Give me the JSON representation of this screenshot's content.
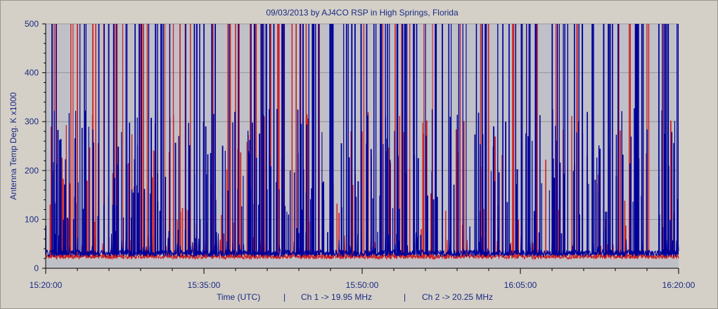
{
  "chart_data": {
    "type": "line",
    "title": "09/03/2013  by  AJ4CO RSP  in  High Springs, Florida",
    "ylabel": "Antenna Temp Deg. K x1000",
    "xlabel": "Time (UTC)",
    "footer_separator": "|",
    "ylim": [
      0,
      500
    ],
    "yticks": [
      0,
      100,
      200,
      300,
      400,
      500
    ],
    "xlim_minutes": [
      0,
      60
    ],
    "xticks": [
      {
        "label": "15:20:00",
        "minute": 0
      },
      {
        "label": "15:35:00",
        "minute": 15
      },
      {
        "label": "15:50:00",
        "minute": 30
      },
      {
        "label": "16:05:00",
        "minute": 45
      },
      {
        "label": "16:20:00",
        "minute": 60
      }
    ],
    "grid": true,
    "series": [
      {
        "name": "Ch 1 -> 19.95 MHz",
        "color": "#cc2222",
        "baseline": 22,
        "noise": 10,
        "spikes_to_max": 65,
        "spikes_mid": 120
      },
      {
        "name": "Ch 2 -> 20.25 MHz",
        "color": "#000099",
        "baseline": 28,
        "noise": 14,
        "spikes_to_max": 150,
        "spikes_mid": 260
      }
    ]
  },
  "colors": {
    "background": "#d4d0c8",
    "plot_background": "#c0c0c8",
    "grid": "#8a8a8a",
    "text": "#1a2a80"
  }
}
